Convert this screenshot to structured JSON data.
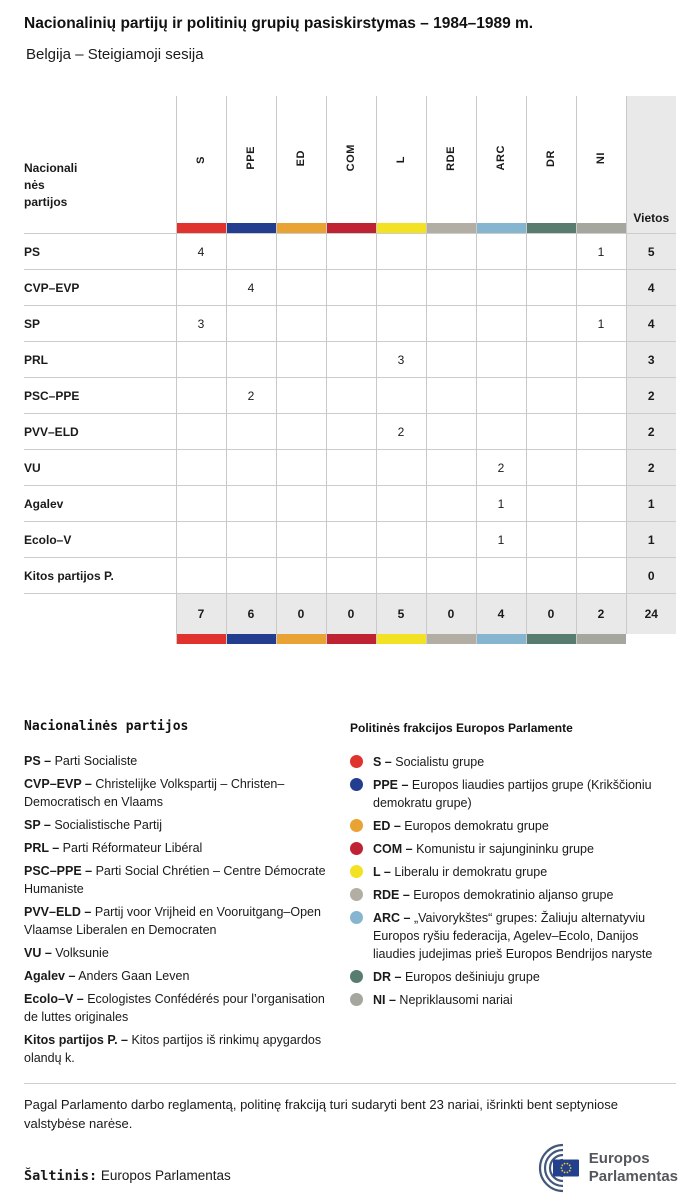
{
  "header": {
    "title": "Nacionalinių partijų ir politinių grupių pasiskirstymas – 1984–1989 m.",
    "subtitle": "Belgija – Steigiamoji sesija"
  },
  "table": {
    "row_header_lines": [
      "Nacionali",
      "nės",
      "partijos"
    ],
    "seats_header": "Vietos",
    "groups": [
      {
        "id": "S",
        "color": "#e0332d"
      },
      {
        "id": "PPE",
        "color": "#233d8f"
      },
      {
        "id": "ED",
        "color": "#e9a234"
      },
      {
        "id": "COM",
        "color": "#bf2333"
      },
      {
        "id": "L",
        "color": "#f3e223"
      },
      {
        "id": "RDE",
        "color": "#b3aea3"
      },
      {
        "id": "ARC",
        "color": "#86b6cf"
      },
      {
        "id": "DR",
        "color": "#587d70"
      },
      {
        "id": "NI",
        "color": "#a5a69e"
      }
    ],
    "rows": [
      {
        "party": "PS",
        "values": [
          "4",
          "",
          "",
          "",
          "",
          "",
          "",
          "",
          "1"
        ],
        "seats": "5"
      },
      {
        "party": "CVP–EVP",
        "values": [
          "",
          "4",
          "",
          "",
          "",
          "",
          "",
          "",
          ""
        ],
        "seats": "4"
      },
      {
        "party": "SP",
        "values": [
          "3",
          "",
          "",
          "",
          "",
          "",
          "",
          "",
          "1"
        ],
        "seats": "4"
      },
      {
        "party": "PRL",
        "values": [
          "",
          "",
          "",
          "",
          "3",
          "",
          "",
          "",
          ""
        ],
        "seats": "3"
      },
      {
        "party": "PSC–PPE",
        "values": [
          "",
          "2",
          "",
          "",
          "",
          "",
          "",
          "",
          ""
        ],
        "seats": "2"
      },
      {
        "party": "PVV–ELD",
        "values": [
          "",
          "",
          "",
          "",
          "2",
          "",
          "",
          "",
          ""
        ],
        "seats": "2"
      },
      {
        "party": "VU",
        "values": [
          "",
          "",
          "",
          "",
          "",
          "",
          "2",
          "",
          ""
        ],
        "seats": "2"
      },
      {
        "party": "Agalev",
        "values": [
          "",
          "",
          "",
          "",
          "",
          "",
          "1",
          "",
          ""
        ],
        "seats": "1"
      },
      {
        "party": "Ecolo–V",
        "values": [
          "",
          "",
          "",
          "",
          "",
          "",
          "1",
          "",
          ""
        ],
        "seats": "1"
      },
      {
        "party": "Kitos partijos P.",
        "values": [
          "",
          "",
          "",
          "",
          "",
          "",
          "",
          "",
          ""
        ],
        "seats": "0"
      }
    ],
    "totals": {
      "values": [
        "7",
        "6",
        "0",
        "0",
        "5",
        "0",
        "4",
        "0",
        "2"
      ],
      "seats": "24"
    }
  },
  "chart_data": {
    "type": "table",
    "title": "Nacionalinių partijų ir politinių grupių pasiskirstymas – 1984–1989 m.",
    "subtitle": "Belgija – Steigiamoji sesija",
    "columns": [
      "S",
      "PPE",
      "ED",
      "COM",
      "L",
      "RDE",
      "ARC",
      "DR",
      "NI",
      "Vietos"
    ],
    "rows": [
      {
        "party": "PS",
        "S": 4,
        "NI": 1,
        "Vietos": 5
      },
      {
        "party": "CVP–EVP",
        "PPE": 4,
        "Vietos": 4
      },
      {
        "party": "SP",
        "S": 3,
        "NI": 1,
        "Vietos": 4
      },
      {
        "party": "PRL",
        "L": 3,
        "Vietos": 3
      },
      {
        "party": "PSC–PPE",
        "PPE": 2,
        "Vietos": 2
      },
      {
        "party": "PVV–ELD",
        "L": 2,
        "Vietos": 2
      },
      {
        "party": "VU",
        "ARC": 2,
        "Vietos": 2
      },
      {
        "party": "Agalev",
        "ARC": 1,
        "Vietos": 1
      },
      {
        "party": "Ecolo–V",
        "ARC": 1,
        "Vietos": 1
      },
      {
        "party": "Kitos partijos P.",
        "Vietos": 0
      }
    ],
    "totals": {
      "S": 7,
      "PPE": 6,
      "ED": 0,
      "COM": 0,
      "L": 5,
      "RDE": 0,
      "ARC": 4,
      "DR": 0,
      "NI": 2,
      "Vietos": 24
    }
  },
  "party_legend": {
    "heading": "Nacionalinės partijos",
    "items": [
      {
        "label": "PS –",
        "text": "Parti Socialiste"
      },
      {
        "label": "CVP–EVP –",
        "text": "Christelijke Volkspartij – Christen–Democratisch en Vlaams"
      },
      {
        "label": "SP –",
        "text": "Socialistische Partij"
      },
      {
        "label": "PRL –",
        "text": "Parti Réformateur Libéral"
      },
      {
        "label": "PSC–PPE –",
        "text": "Parti Social Chrétien – Centre Démocrate Humaniste"
      },
      {
        "label": "PVV–ELD –",
        "text": "Partij voor Vrijheid en Vooruitgang–Open Vlaamse Liberalen en Democraten"
      },
      {
        "label": "VU –",
        "text": "Volksunie"
      },
      {
        "label": "Agalev –",
        "text": "Anders Gaan Leven"
      },
      {
        "label": "Ecolo–V –",
        "text": "Ecologistes Confédérés pour l’organisation de luttes originales"
      },
      {
        "label": "Kitos partijos P. –",
        "text": "Kitos partijos iš rinkimų apygardos olandų k."
      }
    ]
  },
  "group_legend": {
    "heading": "Politinės frakcijos Europos Parlamente",
    "items": [
      {
        "label": "S –",
        "text": "Socialistu grupe",
        "color": "#e0332d"
      },
      {
        "label": "PPE –",
        "text": "Europos liaudies partijos grupe (Krikščioniu demokratu grupe)",
        "color": "#233d8f"
      },
      {
        "label": "ED –",
        "text": "Europos demokratu grupe",
        "color": "#e9a234"
      },
      {
        "label": "COM –",
        "text": "Komunistu ir sajungininku grupe",
        "color": "#bf2333"
      },
      {
        "label": "L –",
        "text": "Liberalu ir demokratu grupe",
        "color": "#f3e223"
      },
      {
        "label": "RDE –",
        "text": "Europos demokratinio aljanso grupe",
        "color": "#b3aea3"
      },
      {
        "label": "ARC –",
        "text": "„Vaivorykštes“ grupes: Žaliuju alternatyviu Europos ryšiu federacija, Agelev–Ecolo, Danijos liaudies judejimas prieš Europos Bendrijos naryste",
        "color": "#86b6cf"
      },
      {
        "label": "DR –",
        "text": "Europos dešiniuju grupe",
        "color": "#587d70"
      },
      {
        "label": "NI –",
        "text": "Nepriklausomi nariai",
        "color": "#a5a69e"
      }
    ]
  },
  "footer": {
    "note": "Pagal Parlamento darbo reglamentą, politinę frakciją turi sudaryti bent 23 nariai, išrinkti bent septyniose valstybėse narėse.",
    "source_label": "Šaltinis:",
    "source_text": " Europos Parlamentas",
    "logo": {
      "line1": "Europos",
      "line2": "Parlamentas"
    }
  }
}
